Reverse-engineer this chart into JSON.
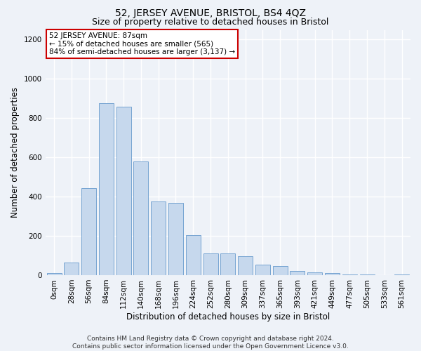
{
  "title": "52, JERSEY AVENUE, BRISTOL, BS4 4QZ",
  "subtitle": "Size of property relative to detached houses in Bristol",
  "xlabel": "Distribution of detached houses by size in Bristol",
  "ylabel": "Number of detached properties",
  "footer_line1": "Contains HM Land Registry data © Crown copyright and database right 2024.",
  "footer_line2": "Contains public sector information licensed under the Open Government Licence v3.0.",
  "annotation_line1": "52 JERSEY AVENUE: 87sqm",
  "annotation_line2": "← 15% of detached houses are smaller (565)",
  "annotation_line3": "84% of semi-detached houses are larger (3,137) →",
  "bar_labels": [
    "0sqm",
    "28sqm",
    "56sqm",
    "84sqm",
    "112sqm",
    "140sqm",
    "168sqm",
    "196sqm",
    "224sqm",
    "252sqm",
    "280sqm",
    "309sqm",
    "337sqm",
    "365sqm",
    "393sqm",
    "421sqm",
    "449sqm",
    "477sqm",
    "505sqm",
    "533sqm",
    "561sqm"
  ],
  "bar_values": [
    10,
    65,
    445,
    875,
    860,
    580,
    375,
    370,
    205,
    110,
    110,
    95,
    55,
    48,
    20,
    15,
    10,
    5,
    2,
    1,
    2
  ],
  "bar_color": "#c6d8ed",
  "bar_edge_color": "#6699cc",
  "annotation_box_facecolor": "#ffffff",
  "annotation_box_edgecolor": "#cc0000",
  "background_color": "#eef2f8",
  "grid_color": "#ffffff",
  "ylim": [
    0,
    1250
  ],
  "yticks": [
    0,
    200,
    400,
    600,
    800,
    1000,
    1200
  ],
  "title_fontsize": 10,
  "subtitle_fontsize": 9,
  "xlabel_fontsize": 8.5,
  "ylabel_fontsize": 8.5,
  "tick_fontsize": 7.5,
  "annotation_fontsize": 7.5,
  "footer_fontsize": 6.5
}
